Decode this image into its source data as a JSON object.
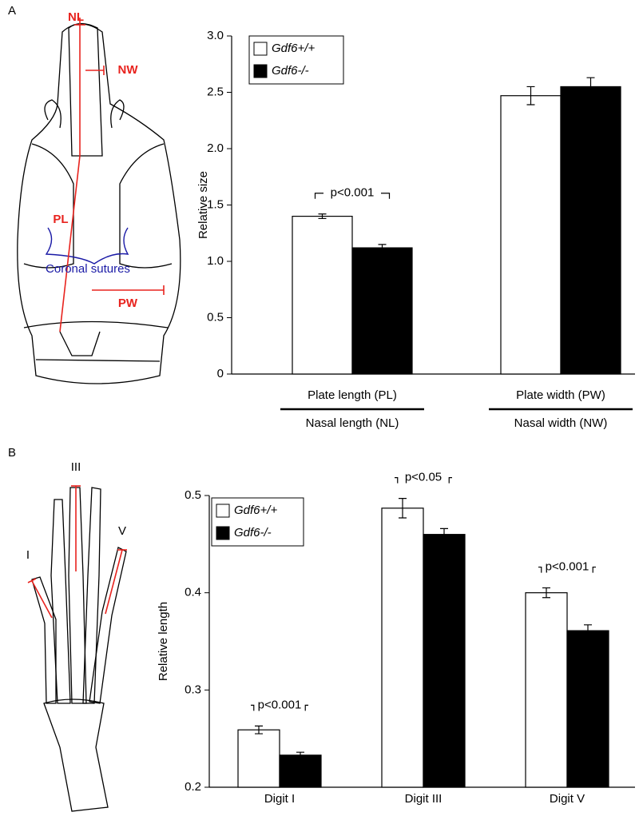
{
  "panels": [
    {
      "label": "A",
      "diagram_labels": [
        "NL",
        "NW",
        "PL",
        "PW",
        "Coronal sutures"
      ]
    },
    {
      "label": "B",
      "diagram_labels": [
        "III",
        "V",
        "I"
      ]
    }
  ],
  "chart_data": [
    {
      "type": "bar",
      "ylabel": "Relative size",
      "categories": [
        "Plate length (PL)",
        "Plate width (PW)"
      ],
      "category_denominators": [
        "Nasal length (NL)",
        "Nasal width (NW)"
      ],
      "series": [
        {
          "name": "Gdf6+/+",
          "color": "#ffffff",
          "values": [
            1.4,
            2.47
          ],
          "errors": [
            0.02,
            0.08
          ]
        },
        {
          "name": "Gdf6-/-",
          "color": "#000000",
          "values": [
            1.12,
            2.55
          ],
          "errors": [
            0.03,
            0.08
          ]
        }
      ],
      "annotations": [
        "p<0.001",
        null
      ],
      "ylim": [
        0,
        3
      ],
      "yticks": [
        0,
        0.5,
        {
          "value": 1,
          "label": "1.0"
        },
        1.5,
        {
          "value": 2,
          "label": "2.0"
        },
        2.5,
        {
          "value": 3,
          "label": "3.0"
        }
      ],
      "legend": "upper left"
    },
    {
      "type": "bar",
      "ylabel": "Relative length",
      "categories": [
        "Digit I",
        "Digit III",
        "Digit V"
      ],
      "series": [
        {
          "name": "Gdf6+/+",
          "color": "#ffffff",
          "values": [
            0.259,
            0.487,
            0.4
          ],
          "errors": [
            0.004,
            0.01,
            0.005
          ]
        },
        {
          "name": "Gdf6-/-",
          "color": "#000000",
          "values": [
            0.233,
            0.46,
            0.361
          ],
          "errors": [
            0.003,
            0.006,
            0.006
          ]
        }
      ],
      "annotations": [
        "p<0.001",
        "p<0.05",
        "p<0.001"
      ],
      "ylim": [
        0.2,
        0.5
      ],
      "yticks": [
        0.2,
        0.3,
        0.4,
        0.5
      ],
      "legend": "upper left"
    }
  ]
}
